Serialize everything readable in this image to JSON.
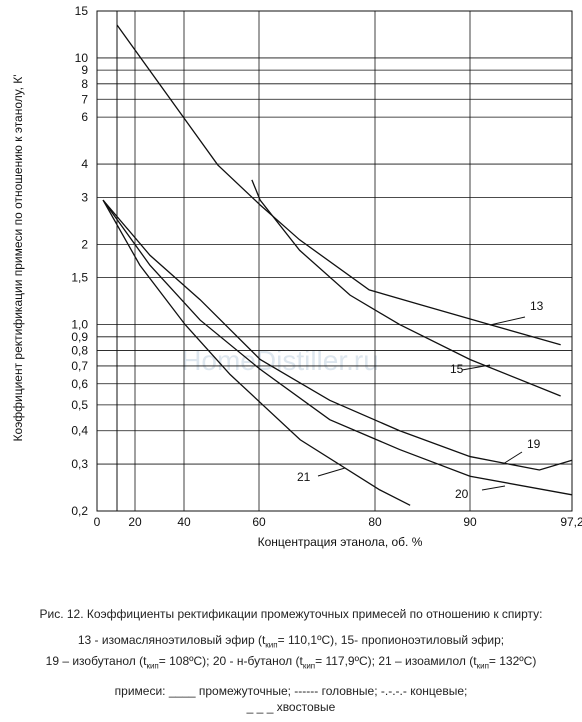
{
  "chart_data": {
    "type": "line",
    "y_label": "Коэффициент ректификации примеси по отношению к этанолу, К'",
    "x_label": "Концентрация этанола, об. %",
    "watermark": "HomeDistiller.ru",
    "xlim": [
      0,
      97.2
    ],
    "xticks": [
      0,
      20,
      40,
      60,
      80,
      90,
      {
        "value": 97.2,
        "label": "97,2"
      }
    ],
    "ylim": [
      0.2,
      15
    ],
    "y_scale": "log",
    "yticks": [
      15,
      10,
      9,
      8,
      7,
      6,
      4,
      3,
      2,
      {
        "value": 1.5,
        "label": "1,5"
      },
      {
        "value": 1.0,
        "label": "1,0"
      },
      {
        "value": 0.9,
        "label": "0,9"
      },
      {
        "value": 0.8,
        "label": "0,8"
      },
      {
        "value": 0.7,
        "label": "0,7"
      },
      {
        "value": 0.6,
        "label": "0,6"
      },
      {
        "value": 0.5,
        "label": "0,5"
      },
      {
        "value": 0.4,
        "label": "0,4"
      },
      {
        "value": 0.3,
        "label": "0,3"
      },
      {
        "value": 0.2,
        "label": "0,2"
      }
    ],
    "grid": true,
    "series": [
      {
        "name": "13",
        "color": "#111111",
        "x": [
          10.5,
          49,
          60.2,
          67,
          79,
          84.7,
          91.4,
          96.4
        ],
        "values": [
          13.3,
          3.97,
          2.81,
          2.08,
          1.35,
          1.19,
          1.0,
          0.84
        ]
      },
      {
        "name": "15",
        "color": "#111111",
        "x": [
          58.1,
          60.2,
          67,
          75.7,
          82.6,
          90,
          96.4
        ],
        "values": [
          3.49,
          2.93,
          1.9,
          1.29,
          1.0,
          0.74,
          0.54
        ]
      },
      {
        "name": "19",
        "color": "#111111",
        "x": [
          3.2,
          26.1,
          44.3,
          60.2,
          72.2,
          82.6,
          90,
          94.9,
          97.2
        ],
        "values": [
          2.93,
          1.82,
          1.24,
          0.74,
          0.52,
          0.4,
          0.32,
          0.285,
          0.31
        ]
      },
      {
        "name": "20",
        "color": "#111111",
        "x": [
          3.2,
          26.1,
          44.3,
          60.2,
          72.2,
          82.6,
          90,
          97.2
        ],
        "values": [
          2.93,
          1.67,
          1.04,
          0.68,
          0.44,
          0.34,
          0.27,
          0.23
        ]
      },
      {
        "name": "21",
        "color": "#111111",
        "x": [
          3.2,
          22,
          40.3,
          52.3,
          67.1,
          80.5,
          83.7
        ],
        "values": [
          2.93,
          1.67,
          1.0,
          0.65,
          0.37,
          0.24,
          0.21
        ]
      }
    ]
  },
  "caption": {
    "title": "Рис. 12. Коэффициенты ректификации промежуточных примесей по отношению к спирту:",
    "line1": [
      "13 - изомасляноэтиловый эфир (t",
      "кип",
      "= 110,1ºС), 15- пропионоэтиловый эфир;"
    ],
    "line2": [
      "19 – изобутанол (t",
      "кип",
      "= 108ºС); 20 - н-бутанол (t",
      "кип",
      "= 117,9ºС); 21 – изоамилол (t",
      "кип",
      "= 132ºС)"
    ],
    "legend1": "примеси: ____ промежуточные; ------ головные; -.-.-.- концевые;",
    "legend2": "_ _ _ хвостовые"
  }
}
